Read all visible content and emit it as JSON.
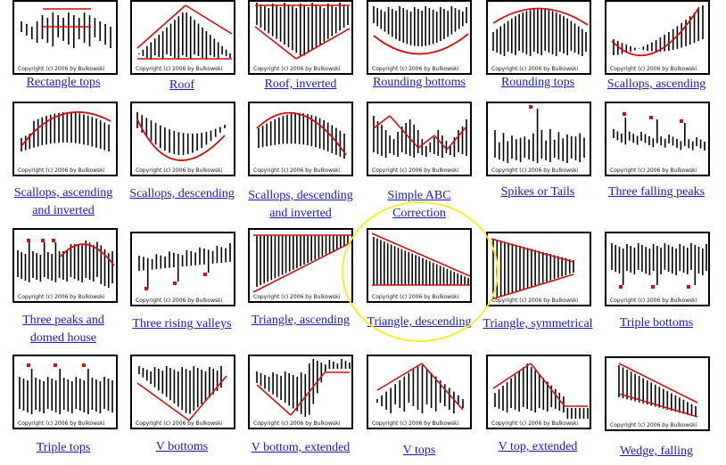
{
  "copyright": "Copyright (c) 2006 by Bulkowski",
  "colors": {
    "bar": "#000000",
    "trend": "#cc1111",
    "link": "#1a1ab8",
    "ring": "#f2ee30"
  },
  "patterns": [
    {
      "id": "rectangle-tops",
      "caption": [
        "Rectangle tops"
      ],
      "interactive": true
    },
    {
      "id": "roof",
      "caption": [
        "Roof"
      ],
      "interactive": true
    },
    {
      "id": "roof-inverted",
      "caption": [
        "Roof, inverted"
      ],
      "interactive": true
    },
    {
      "id": "rounding-bottoms",
      "caption": [
        "Rounding bottoms"
      ],
      "interactive": true
    },
    {
      "id": "rounding-tops",
      "caption": [
        "Rounding tops"
      ],
      "interactive": true
    },
    {
      "id": "scallops-ascending",
      "caption": [
        "Scallops, ascending"
      ],
      "interactive": true
    },
    {
      "id": "scallops-ascending-inverted",
      "caption": [
        "Scallops, ascending",
        "and inverted"
      ],
      "interactive": true
    },
    {
      "id": "scallops-descending",
      "caption": [
        "Scallops, descending"
      ],
      "interactive": true
    },
    {
      "id": "scallops-descending-inverted",
      "caption": [
        "Scallops, descending",
        "and inverted"
      ],
      "interactive": true
    },
    {
      "id": "simple-abc-correction",
      "caption": [
        "Simple ABC",
        "Correction"
      ],
      "interactive": true
    },
    {
      "id": "spikes-or-tails",
      "caption": [
        "Spikes or Tails"
      ],
      "interactive": true
    },
    {
      "id": "three-falling-peaks",
      "caption": [
        "Three falling peaks"
      ],
      "interactive": true
    },
    {
      "id": "three-peaks-domed-house",
      "caption": [
        "Three peaks and",
        "domed house"
      ],
      "interactive": true
    },
    {
      "id": "three-rising-valleys",
      "caption": [
        "Three rising valleys"
      ],
      "interactive": true
    },
    {
      "id": "triangle-ascending",
      "caption": [
        "Triangle, ascending"
      ],
      "interactive": true
    },
    {
      "id": "triangle-descending",
      "caption": [
        "Triangle, descending"
      ],
      "interactive": true
    },
    {
      "id": "triangle-symmetrical",
      "caption": [
        "Triangle, symmetrical"
      ],
      "interactive": true
    },
    {
      "id": "triple-bottoms",
      "caption": [
        "Triple bottoms"
      ],
      "interactive": true
    },
    {
      "id": "triple-tops",
      "caption": [
        "Triple tops"
      ],
      "interactive": true
    },
    {
      "id": "v-bottoms",
      "caption": [
        "V bottoms"
      ],
      "interactive": true
    },
    {
      "id": "v-bottom-extended",
      "caption": [
        "V bottom, extended"
      ],
      "interactive": true
    },
    {
      "id": "v-tops",
      "caption": [
        "V tops"
      ],
      "interactive": true
    },
    {
      "id": "v-top-extended",
      "caption": [
        "V top, extended"
      ],
      "interactive": true
    },
    {
      "id": "wedge-falling",
      "caption": [
        "Wedge, falling"
      ],
      "interactive": true
    }
  ]
}
